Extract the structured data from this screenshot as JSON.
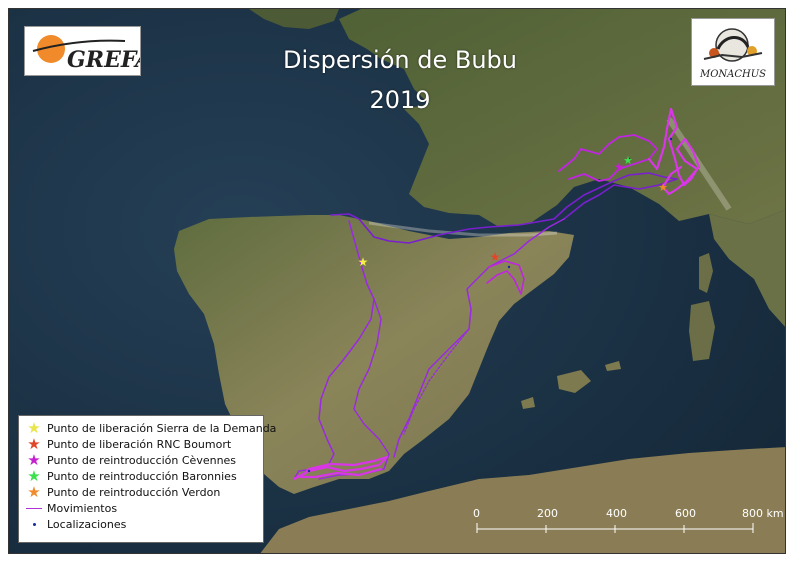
{
  "title": {
    "line1": "Dispersión de Bubu",
    "line2": "2019"
  },
  "logos": {
    "left_text": "GREFA",
    "right_text": "MONACHUS"
  },
  "legend": {
    "items": [
      {
        "label": "Punto de liberación Sierra de la Demanda",
        "symbol": "star",
        "color": "#f5f04a"
      },
      {
        "label": "Punto de liberación RNC Boumort",
        "symbol": "star",
        "color": "#e0462a"
      },
      {
        "label": "Punto de reintroducción Cèvennes",
        "symbol": "star",
        "color": "#c51fd0"
      },
      {
        "label": "Punto de reintroducción Baronnies",
        "symbol": "star",
        "color": "#3be04d"
      },
      {
        "label": "Punto de reintroducción Verdon",
        "symbol": "star",
        "color": "#f08a2a"
      },
      {
        "label": "Movimientos",
        "symbol": "line",
        "color": "#b030d8"
      },
      {
        "label": "Localizaciones",
        "symbol": "dot",
        "color": "#1a2a9a"
      }
    ]
  },
  "scale_bar": {
    "labels": [
      "0",
      "200",
      "400",
      "600",
      "800 km"
    ]
  },
  "colors": {
    "track": "#c026e0",
    "track_dark": "#7a1fd0",
    "sea": "#1d3448",
    "land": "#6f7a4a"
  }
}
